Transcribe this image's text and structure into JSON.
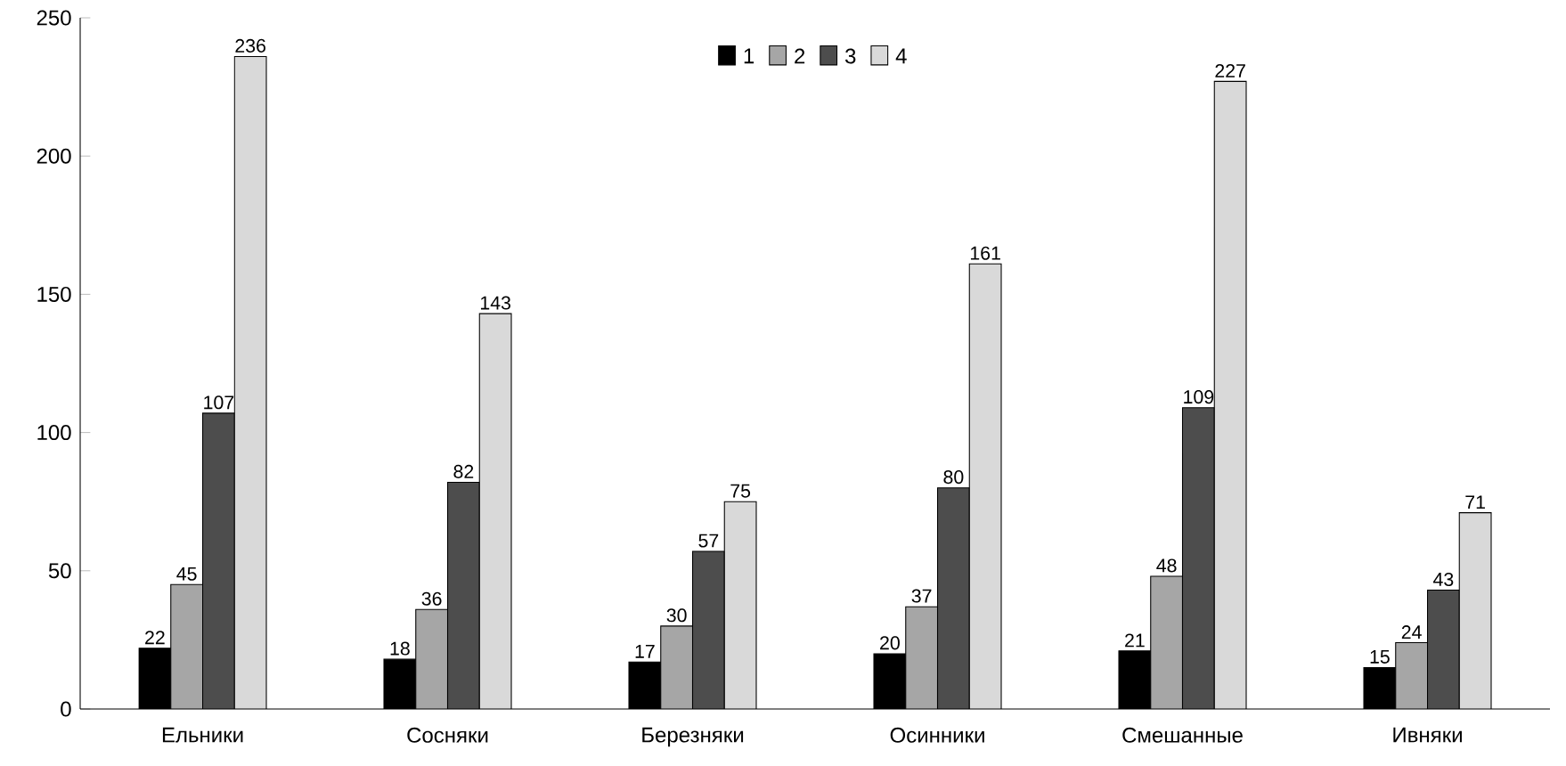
{
  "chart_data": {
    "type": "bar",
    "categories": [
      "Ельники",
      "Сосняки",
      "Березняки",
      "Осинники",
      "Смешанные",
      "Ивняки"
    ],
    "series": [
      {
        "name": "1",
        "color": "#000000",
        "values": [
          22,
          18,
          17,
          20,
          21,
          15
        ]
      },
      {
        "name": "2",
        "color": "#a6a6a6",
        "values": [
          45,
          36,
          30,
          37,
          48,
          24
        ]
      },
      {
        "name": "3",
        "color": "#4d4d4d",
        "values": [
          107,
          82,
          57,
          80,
          109,
          43
        ]
      },
      {
        "name": "4",
        "color": "#d9d9d9",
        "values": [
          236,
          143,
          75,
          161,
          227,
          71
        ]
      }
    ],
    "ylim": [
      0,
      250
    ],
    "yticks": [
      0,
      50,
      100,
      150,
      200,
      250
    ],
    "grid": false,
    "legend": "top",
    "data_labels": true
  }
}
